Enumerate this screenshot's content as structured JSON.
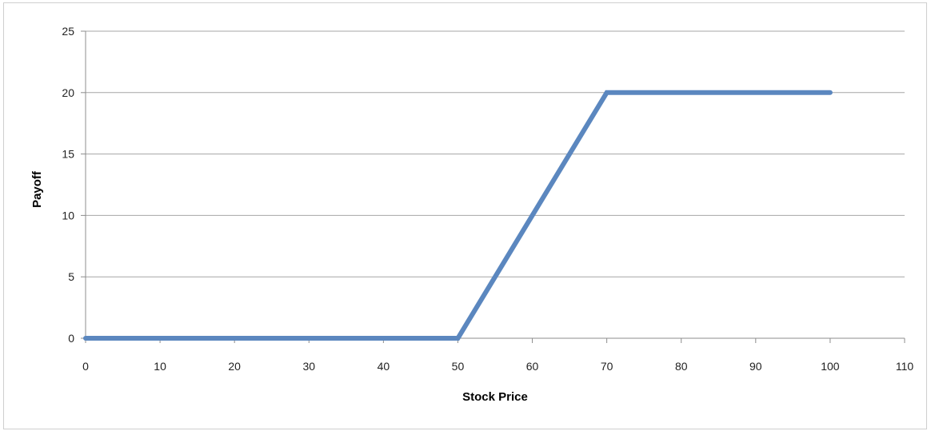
{
  "chart_data": {
    "type": "line",
    "xlabel": "Stock Price",
    "ylabel": "Payoff",
    "xlim": [
      0,
      110
    ],
    "ylim": [
      0,
      25
    ],
    "x_ticks": [
      0,
      10,
      20,
      30,
      40,
      50,
      60,
      70,
      80,
      90,
      100,
      110
    ],
    "y_ticks": [
      0,
      5,
      10,
      15,
      20,
      25
    ],
    "grid": "horizontal",
    "legend": "none",
    "series": [
      {
        "color": "#5b87bf",
        "points": [
          [
            0,
            0
          ],
          [
            50,
            0
          ],
          [
            70,
            20
          ],
          [
            100,
            20
          ]
        ]
      }
    ]
  }
}
